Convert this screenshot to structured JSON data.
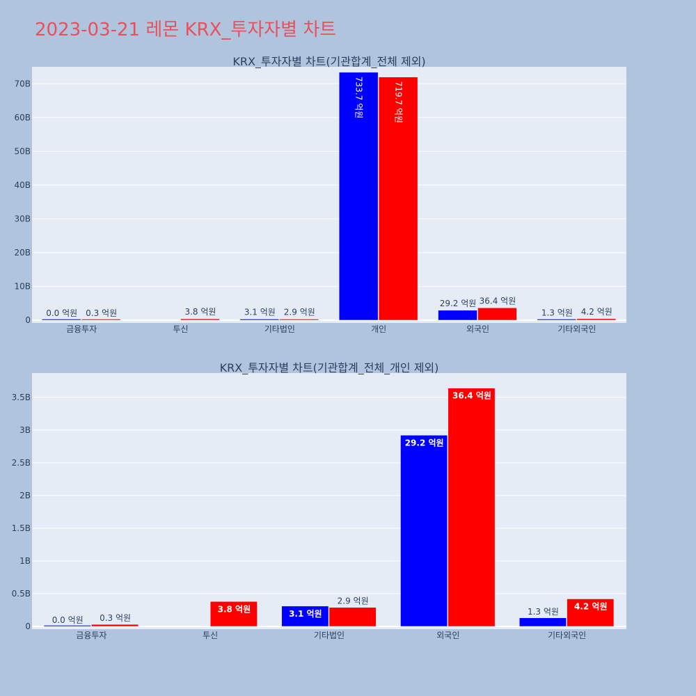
{
  "page": {
    "title": "2023-03-21 레몬 KRX_투자자별 차트"
  },
  "colors": {
    "series_a": "#0000ff",
    "series_b": "#ff0000",
    "plot_bg": "#e5ecf6",
    "page_bg": "#b0c4de",
    "title": "#e8505b"
  },
  "chart_data": [
    {
      "type": "bar",
      "title": "KRX_투자자별 차트(기관합계_전체 제외)",
      "categories": [
        "금융투자",
        "투신",
        "기타법인",
        "개인",
        "외국인",
        "기타외국인"
      ],
      "ylim": [
        0,
        75000000000
      ],
      "yticks": [
        0,
        10000000000,
        20000000000,
        30000000000,
        40000000000,
        50000000000,
        60000000000,
        70000000000
      ],
      "ytick_labels": [
        "0",
        "10B",
        "20B",
        "30B",
        "40B",
        "50B",
        "60B",
        "70B"
      ],
      "grid": true,
      "series": [
        {
          "color": "#0000ff",
          "values": [
            0,
            null,
            310000000,
            73370000000,
            2920000000,
            130000000
          ],
          "labels": [
            "0.0 억원",
            "",
            "3.1 억원",
            "733.7 억원",
            "29.2 억원",
            "1.3 억원"
          ]
        },
        {
          "color": "#ff0000",
          "values": [
            30000000,
            380000000,
            290000000,
            71970000000,
            3640000000,
            420000000
          ],
          "labels": [
            "0.3 억원",
            "3.8 억원",
            "2.9 억원",
            "719.7 억원",
            "36.4 억원",
            "4.2 억원"
          ]
        }
      ]
    },
    {
      "type": "bar",
      "title": "KRX_투자자별 차트(기관합계_전체_개인 제외)",
      "categories": [
        "금융투자",
        "투신",
        "기타법인",
        "외국인",
        "기타외국인"
      ],
      "ylim": [
        0,
        3870000000
      ],
      "yticks": [
        0,
        500000000,
        1000000000,
        1500000000,
        2000000000,
        2500000000,
        3000000000,
        3500000000
      ],
      "ytick_labels": [
        "0",
        "0.5B",
        "1B",
        "1.5B",
        "2B",
        "2.5B",
        "3B",
        "3.5B"
      ],
      "grid": true,
      "series": [
        {
          "color": "#0000ff",
          "values": [
            0,
            null,
            310000000,
            2920000000,
            130000000
          ],
          "labels": [
            "0.0 억원",
            "",
            "3.1 억원",
            "29.2 억원",
            "1.3 억원"
          ]
        },
        {
          "color": "#ff0000",
          "values": [
            30000000,
            380000000,
            290000000,
            3640000000,
            420000000
          ],
          "labels": [
            "0.3 억원",
            "3.8 억원",
            "2.9 억원",
            "36.4 억원",
            "4.2 억원"
          ]
        }
      ]
    }
  ]
}
